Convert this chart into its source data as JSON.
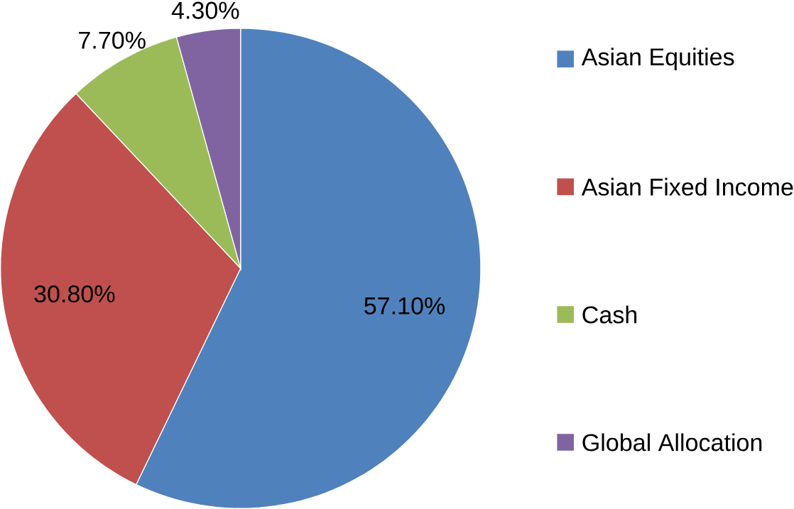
{
  "chart_data": {
    "type": "pie",
    "categories": [
      "Asian Equities",
      "Asian Fixed Income",
      "Cash",
      "Global Allocation"
    ],
    "values": [
      57.1,
      30.8,
      7.7,
      4.3
    ],
    "value_labels": [
      "57.10%",
      "30.80%",
      "7.70%",
      "4.30%"
    ],
    "colors": [
      "#4f81bd",
      "#c0504d",
      "#9bbb59",
      "#8064a2"
    ],
    "legend": "right"
  }
}
